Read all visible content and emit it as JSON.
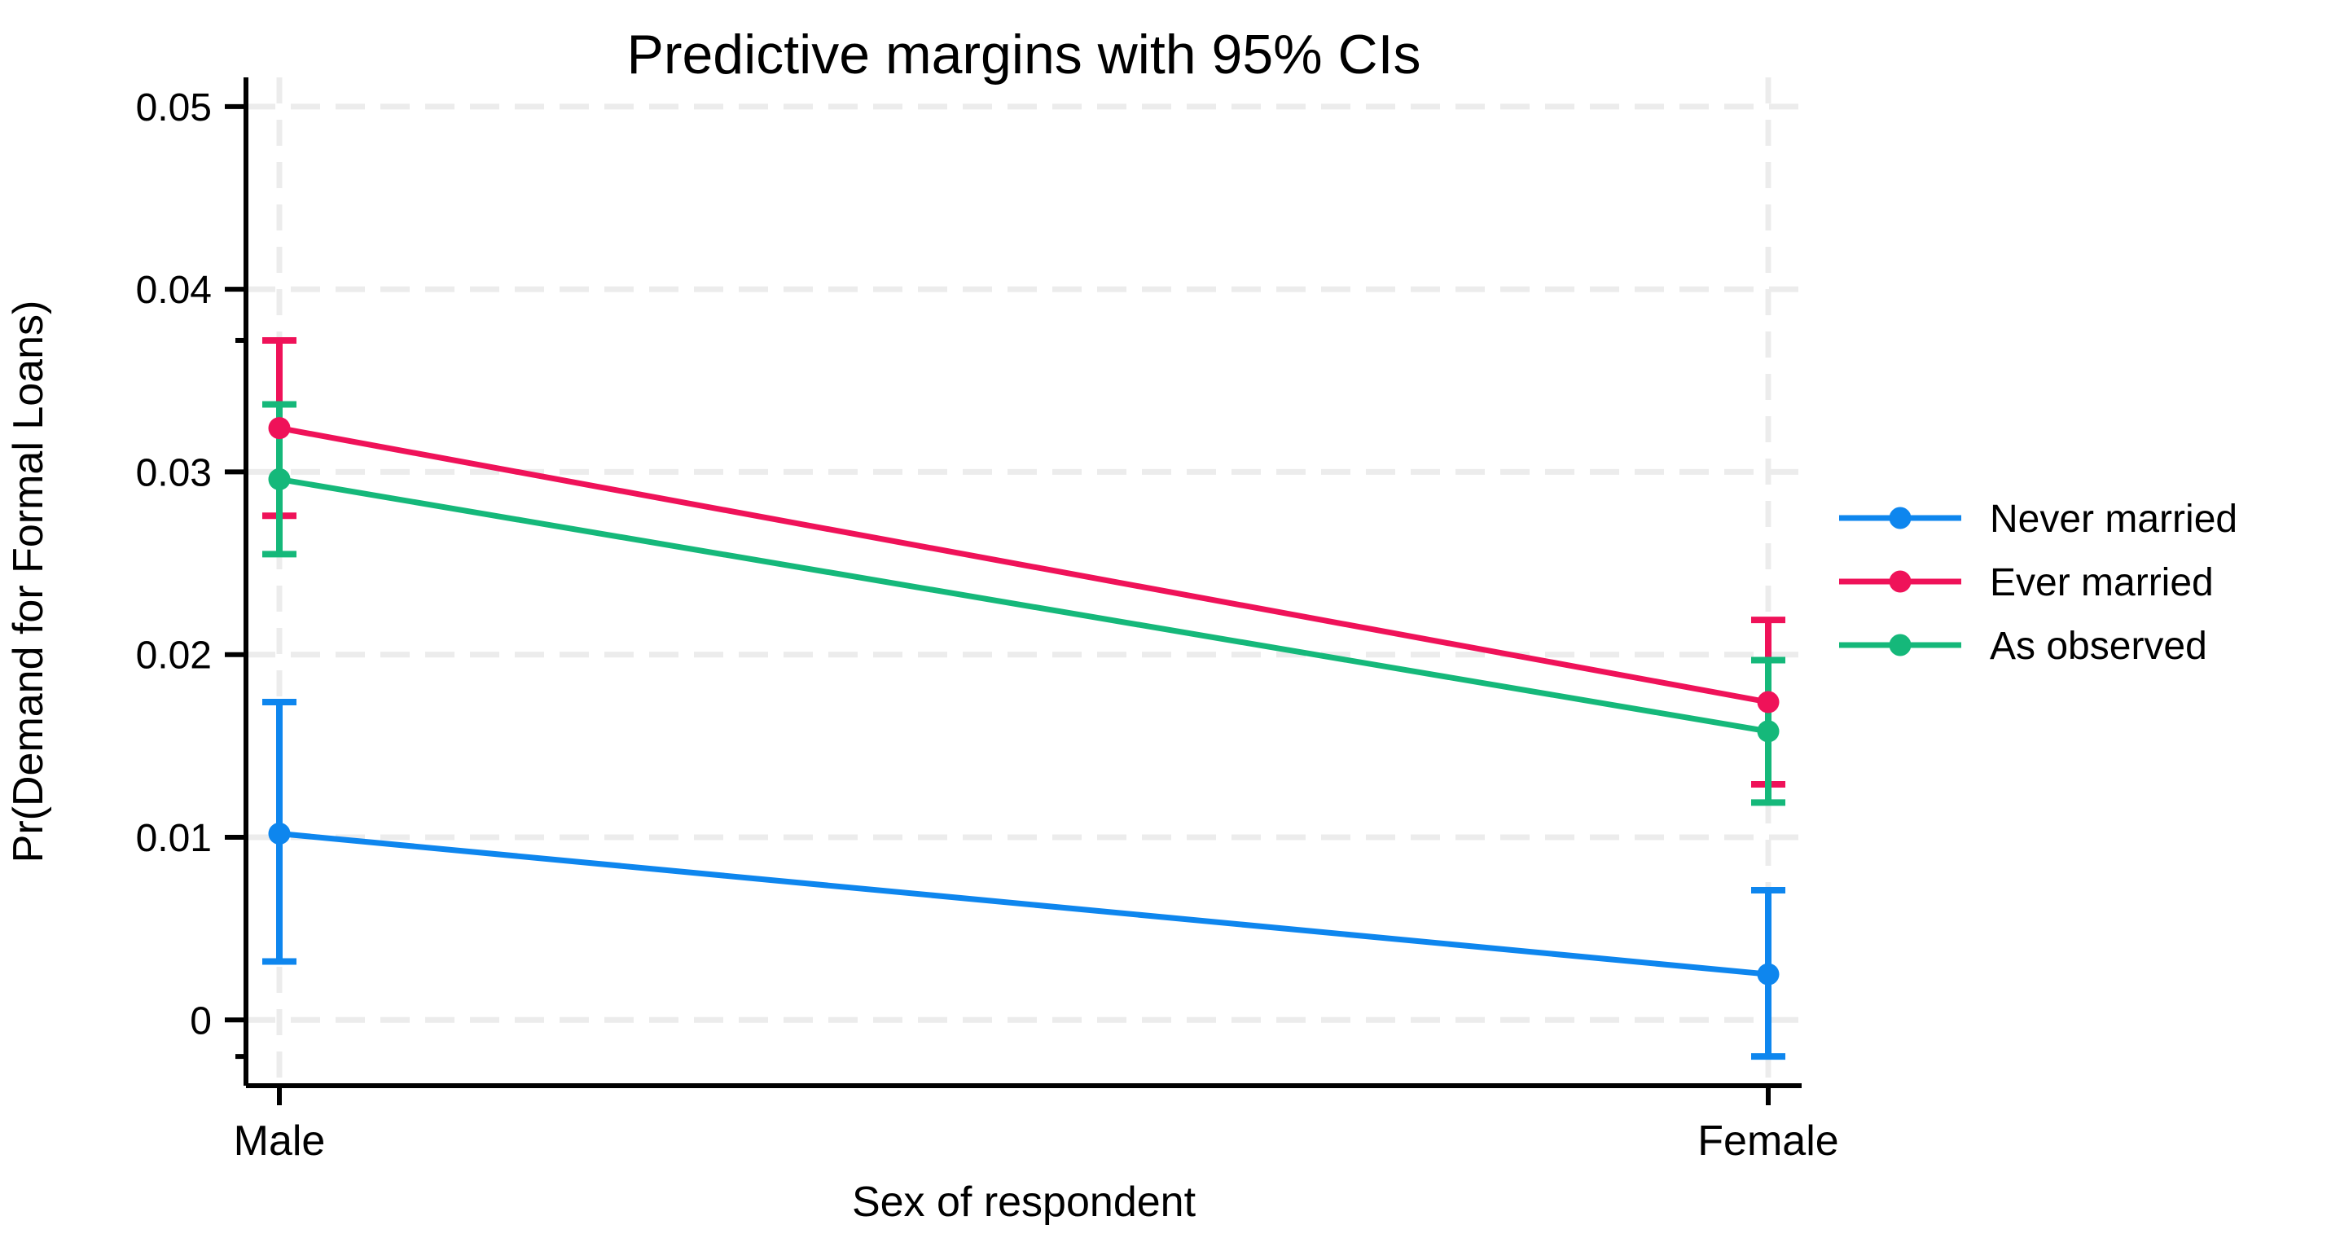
{
  "chart_data": {
    "type": "line",
    "title": "Predictive margins with 95% CIs",
    "xlabel": "Sex of respondent",
    "ylabel": "Pr(Demand for Formal Loans)",
    "categories": [
      "Male",
      "Female"
    ],
    "ylim": [
      -0.0036,
      0.0516
    ],
    "yticks": [
      0,
      0.01,
      0.02,
      0.03,
      0.04,
      0.05
    ],
    "ytick_labels": [
      "0",
      "0.01",
      "0.02",
      "0.03",
      "0.04",
      "0.05"
    ],
    "y_minor_ticks": [
      0.0372,
      -0.002
    ],
    "grid": true,
    "error_bars": "95% CI",
    "legend_position": "right-middle",
    "series": [
      {
        "name": "Never married",
        "color": "#0e86ee",
        "values": [
          0.0102,
          0.0025
        ],
        "ci_low": [
          0.0032,
          -0.002
        ],
        "ci_high": [
          0.0174,
          0.0071
        ]
      },
      {
        "name": "Ever married",
        "color": "#ef1259",
        "values": [
          0.0324,
          0.0174
        ],
        "ci_low": [
          0.0276,
          0.0129
        ],
        "ci_high": [
          0.0372,
          0.0219
        ]
      },
      {
        "name": "As observed",
        "color": "#15b87a",
        "values": [
          0.0296,
          0.0158
        ],
        "ci_low": [
          0.0255,
          0.0119
        ],
        "ci_high": [
          0.0337,
          0.0197
        ]
      }
    ],
    "colors": {
      "axis": "#000000",
      "text": "#000000",
      "gridline": "#ececec",
      "background": "#ffffff"
    }
  }
}
